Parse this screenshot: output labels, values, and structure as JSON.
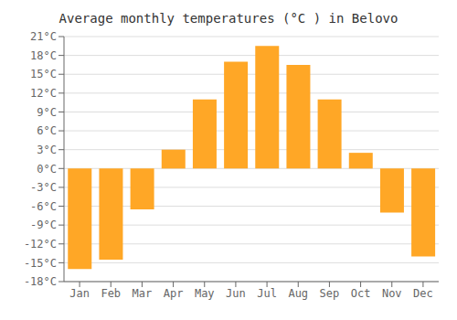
{
  "chart_data": {
    "type": "bar",
    "title": "Average monthly temperatures (°C ) in Belovo",
    "categories": [
      "Jan",
      "Feb",
      "Mar",
      "Apr",
      "May",
      "Jun",
      "Jul",
      "Aug",
      "Sep",
      "Oct",
      "Nov",
      "Dec"
    ],
    "values": [
      -16,
      -14.5,
      -6.5,
      3,
      11,
      17,
      19.5,
      16.5,
      11,
      2.5,
      -7,
      -14
    ],
    "color": "#FFA726",
    "ylim": [
      -18,
      21
    ],
    "yticks": [
      {
        "value": -18,
        "label": "-18°C"
      },
      {
        "value": -15,
        "label": "-15°C"
      },
      {
        "value": -12,
        "label": "-12°C"
      },
      {
        "value": -9,
        "label": "-9°C"
      },
      {
        "value": -6,
        "label": "-6°C"
      },
      {
        "value": -3,
        "label": "-3°C"
      },
      {
        "value": 0,
        "label": "0°C"
      },
      {
        "value": 3,
        "label": "3°C"
      },
      {
        "value": 6,
        "label": "6°C"
      },
      {
        "value": 9,
        "label": "9°C"
      },
      {
        "value": 12,
        "label": "12°C"
      },
      {
        "value": 15,
        "label": "15°C"
      },
      {
        "value": 18,
        "label": "18°C"
      },
      {
        "value": 21,
        "label": "21°C"
      }
    ],
    "grid": true
  }
}
